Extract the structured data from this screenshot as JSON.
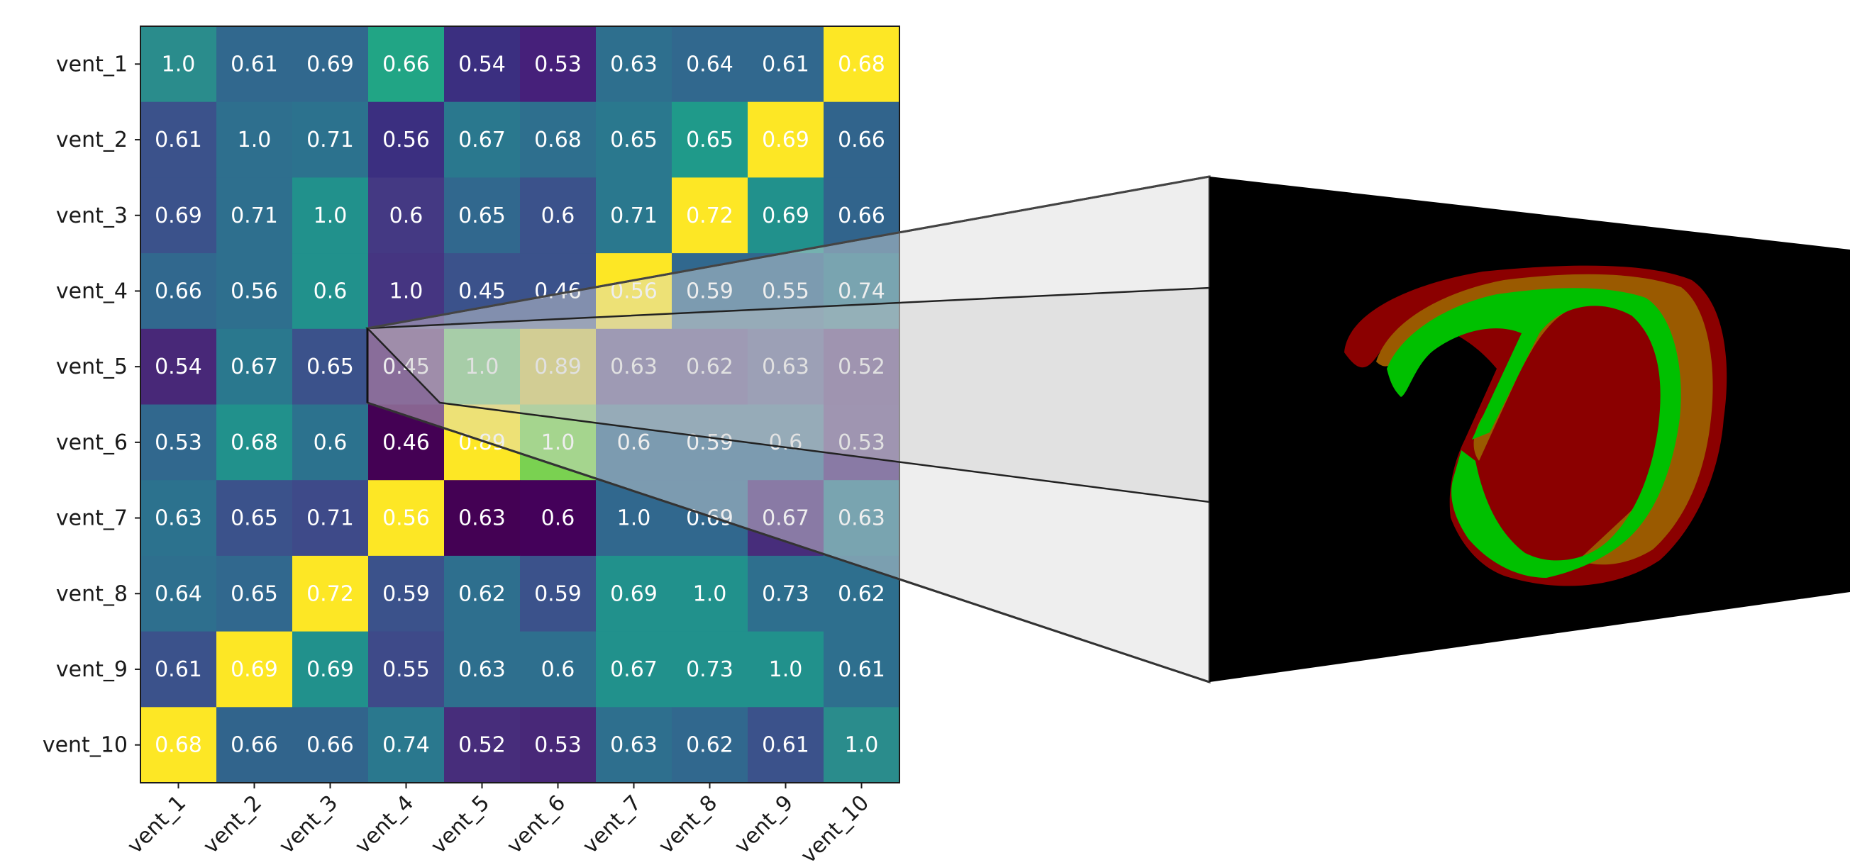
{
  "chart_data": {
    "type": "heatmap",
    "title": "",
    "xlabel": "",
    "ylabel": "",
    "rows": [
      "vent_1",
      "vent_2",
      "vent_3",
      "vent_4",
      "vent_5",
      "vent_6",
      "vent_7",
      "vent_8",
      "vent_9",
      "vent_10"
    ],
    "cols": [
      "vent_1",
      "vent_2",
      "vent_3",
      "vent_4",
      "vent_5",
      "vent_6",
      "vent_7",
      "vent_8",
      "vent_9",
      "vent_10"
    ],
    "value_labels": [
      [
        "1.0",
        "0.61",
        "0.69",
        "0.66",
        "0.54",
        "0.53",
        "0.63",
        "0.64",
        "0.61",
        "0.68"
      ],
      [
        "0.61",
        "1.0",
        "0.71",
        "0.56",
        "0.67",
        "0.68",
        "0.65",
        "0.65",
        "0.69",
        "0.66"
      ],
      [
        "0.69",
        "0.71",
        "1.0",
        "0.6",
        "0.65",
        "0.6",
        "0.71",
        "0.72",
        "0.69",
        "0.66"
      ],
      [
        "0.66",
        "0.56",
        "0.6",
        "1.0",
        "0.45",
        "0.46",
        "0.56",
        "0.59",
        "0.55",
        "0.74"
      ],
      [
        "0.54",
        "0.67",
        "0.65",
        "0.45",
        "1.0",
        "0.89",
        "0.63",
        "0.62",
        "0.63",
        "0.52"
      ],
      [
        "0.53",
        "0.68",
        "0.6",
        "0.46",
        "0.89",
        "1.0",
        "0.6",
        "0.59",
        "0.6",
        "0.53"
      ],
      [
        "0.63",
        "0.65",
        "0.71",
        "0.56",
        "0.63",
        "0.6",
        "1.0",
        "0.69",
        "0.67",
        "0.63"
      ],
      [
        "0.64",
        "0.65",
        "0.72",
        "0.59",
        "0.62",
        "0.59",
        "0.69",
        "1.0",
        "0.73",
        "0.62"
      ],
      [
        "0.61",
        "0.69",
        "0.69",
        "0.55",
        "0.63",
        "0.6",
        "0.67",
        "0.73",
        "1.0",
        "0.61"
      ],
      [
        "0.68",
        "0.66",
        "0.66",
        "0.74",
        "0.52",
        "0.53",
        "0.63",
        "0.62",
        "0.61",
        "1.0"
      ]
    ],
    "cell_colors": [
      [
        "#2a8c8c",
        "#31688e",
        "#31688e",
        "#21a585",
        "#3b2f80",
        "#46207a",
        "#2e6f8e",
        "#31688e",
        "#31688e",
        "#fde725"
      ],
      [
        "#3b528b",
        "#2e6f8e",
        "#2c728e",
        "#3b2f80",
        "#2a788e",
        "#2e6f8e",
        "#2a788e",
        "#1f9a8a",
        "#fde725",
        "#31648c"
      ],
      [
        "#3b528b",
        "#2e6f8e",
        "#21918c",
        "#443983",
        "#31688e",
        "#3b528b",
        "#2a788e",
        "#fde725",
        "#21918c",
        "#31648c"
      ],
      [
        "#31688e",
        "#2e6f8e",
        "#21918c",
        "#453581",
        "#3b528b",
        "#3b528b",
        "#fde725",
        "#31688e",
        "#31688e",
        "#2a788e"
      ],
      [
        "#482878",
        "#2a788e",
        "#3b528b",
        "#481467",
        "#5ec962",
        "#d6c72b",
        "#443983",
        "#443983",
        "#3e4a89",
        "#482878"
      ],
      [
        "#31688e",
        "#21918c",
        "#2c728e",
        "#440154",
        "#fde725",
        "#7ad151",
        "#31688e",
        "#31688e",
        "#31688e",
        "#472d7b"
      ],
      [
        "#2c728e",
        "#3b528b",
        "#3e4a89",
        "#fde725",
        "#440154",
        "#44015a",
        "#31688e",
        "#31688e",
        "#472d7b",
        "#2a788e"
      ],
      [
        "#2e6f8e",
        "#31688e",
        "#fde725",
        "#3b528b",
        "#2e6f8e",
        "#3b528b",
        "#21918c",
        "#21918c",
        "#2e6f8e",
        "#2e6f8e"
      ],
      [
        "#3b528b",
        "#fde725",
        "#21918c",
        "#3e4a89",
        "#2e6f8e",
        "#2e6f8e",
        "#21918c",
        "#21918c",
        "#21918c",
        "#2e6f8e"
      ],
      [
        "#fde725",
        "#31648c",
        "#31648c",
        "#2a788e",
        "#472d7b",
        "#482878",
        "#2e6f8e",
        "#31688e",
        "#3b528b",
        "#2a8c8c"
      ]
    ],
    "colormap": "viridis",
    "legend": "none",
    "grid": false
  },
  "inset": {
    "segmentation_colors": {
      "background": "#000000",
      "outer": "#8b0000",
      "middle": "#9a5a00",
      "inner": "#00c000"
    }
  }
}
